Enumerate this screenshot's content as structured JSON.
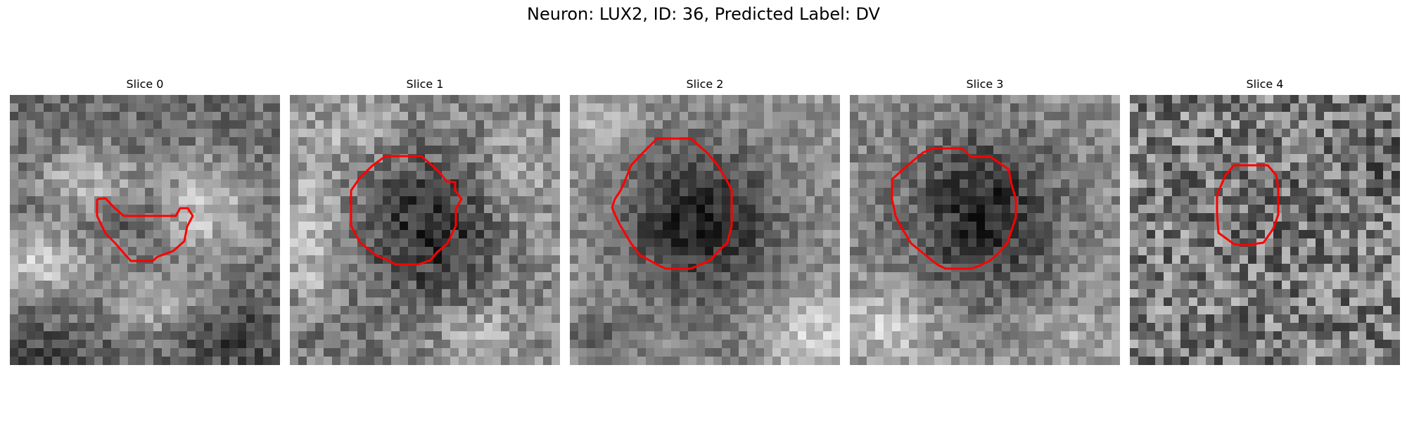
{
  "figure": {
    "title": "Neuron: LUX2, ID: 36, Predicted Label: DV",
    "contour_color": "#ff0000"
  },
  "panels": [
    {
      "title": "Slice 0"
    },
    {
      "title": "Slice 1"
    },
    {
      "title": "Slice 2"
    },
    {
      "title": "Slice 3"
    },
    {
      "title": "Slice 4"
    }
  ]
}
